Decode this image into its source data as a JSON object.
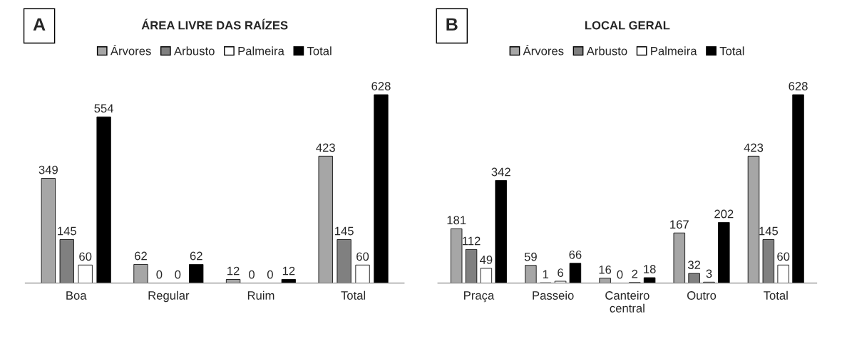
{
  "chart_data": [
    {
      "type": "bar",
      "title": "ÁREA LIVRE DAS RAÍZES",
      "annotations": [
        "A"
      ],
      "categories": [
        "Boa",
        "Regular",
        "Ruim",
        "Total"
      ],
      "data_labels": true,
      "legend": "top",
      "grid": false,
      "series": [
        {
          "name": "Árvores",
          "color": "#a6a6a6",
          "values": [
            349,
            62,
            12,
            423
          ]
        },
        {
          "name": "Arbusto",
          "color": "#808080",
          "values": [
            145,
            0,
            0,
            145
          ]
        },
        {
          "name": "Palmeira",
          "color": "#ffffff",
          "values": [
            60,
            0,
            0,
            60
          ]
        },
        {
          "name": "Total",
          "color": "#000000",
          "values": [
            554,
            62,
            12,
            628
          ]
        }
      ]
    },
    {
      "type": "bar",
      "title": "LOCAL GERAL",
      "annotations": [
        "B"
      ],
      "categories": [
        "Praça",
        "Passeio",
        "Canteiro\ncentral",
        "Outro",
        "Total"
      ],
      "data_labels": true,
      "legend": "top",
      "grid": false,
      "series": [
        {
          "name": "Árvores",
          "color": "#a6a6a6",
          "values": [
            181,
            59,
            16,
            167,
            423
          ]
        },
        {
          "name": "Arbusto",
          "color": "#808080",
          "values": [
            112,
            1,
            0,
            32,
            145
          ]
        },
        {
          "name": "Palmeira",
          "color": "#ffffff",
          "values": [
            49,
            6,
            2,
            3,
            60
          ]
        },
        {
          "name": "Total",
          "color": "#000000",
          "values": [
            342,
            66,
            18,
            202,
            628
          ]
        }
      ]
    }
  ]
}
